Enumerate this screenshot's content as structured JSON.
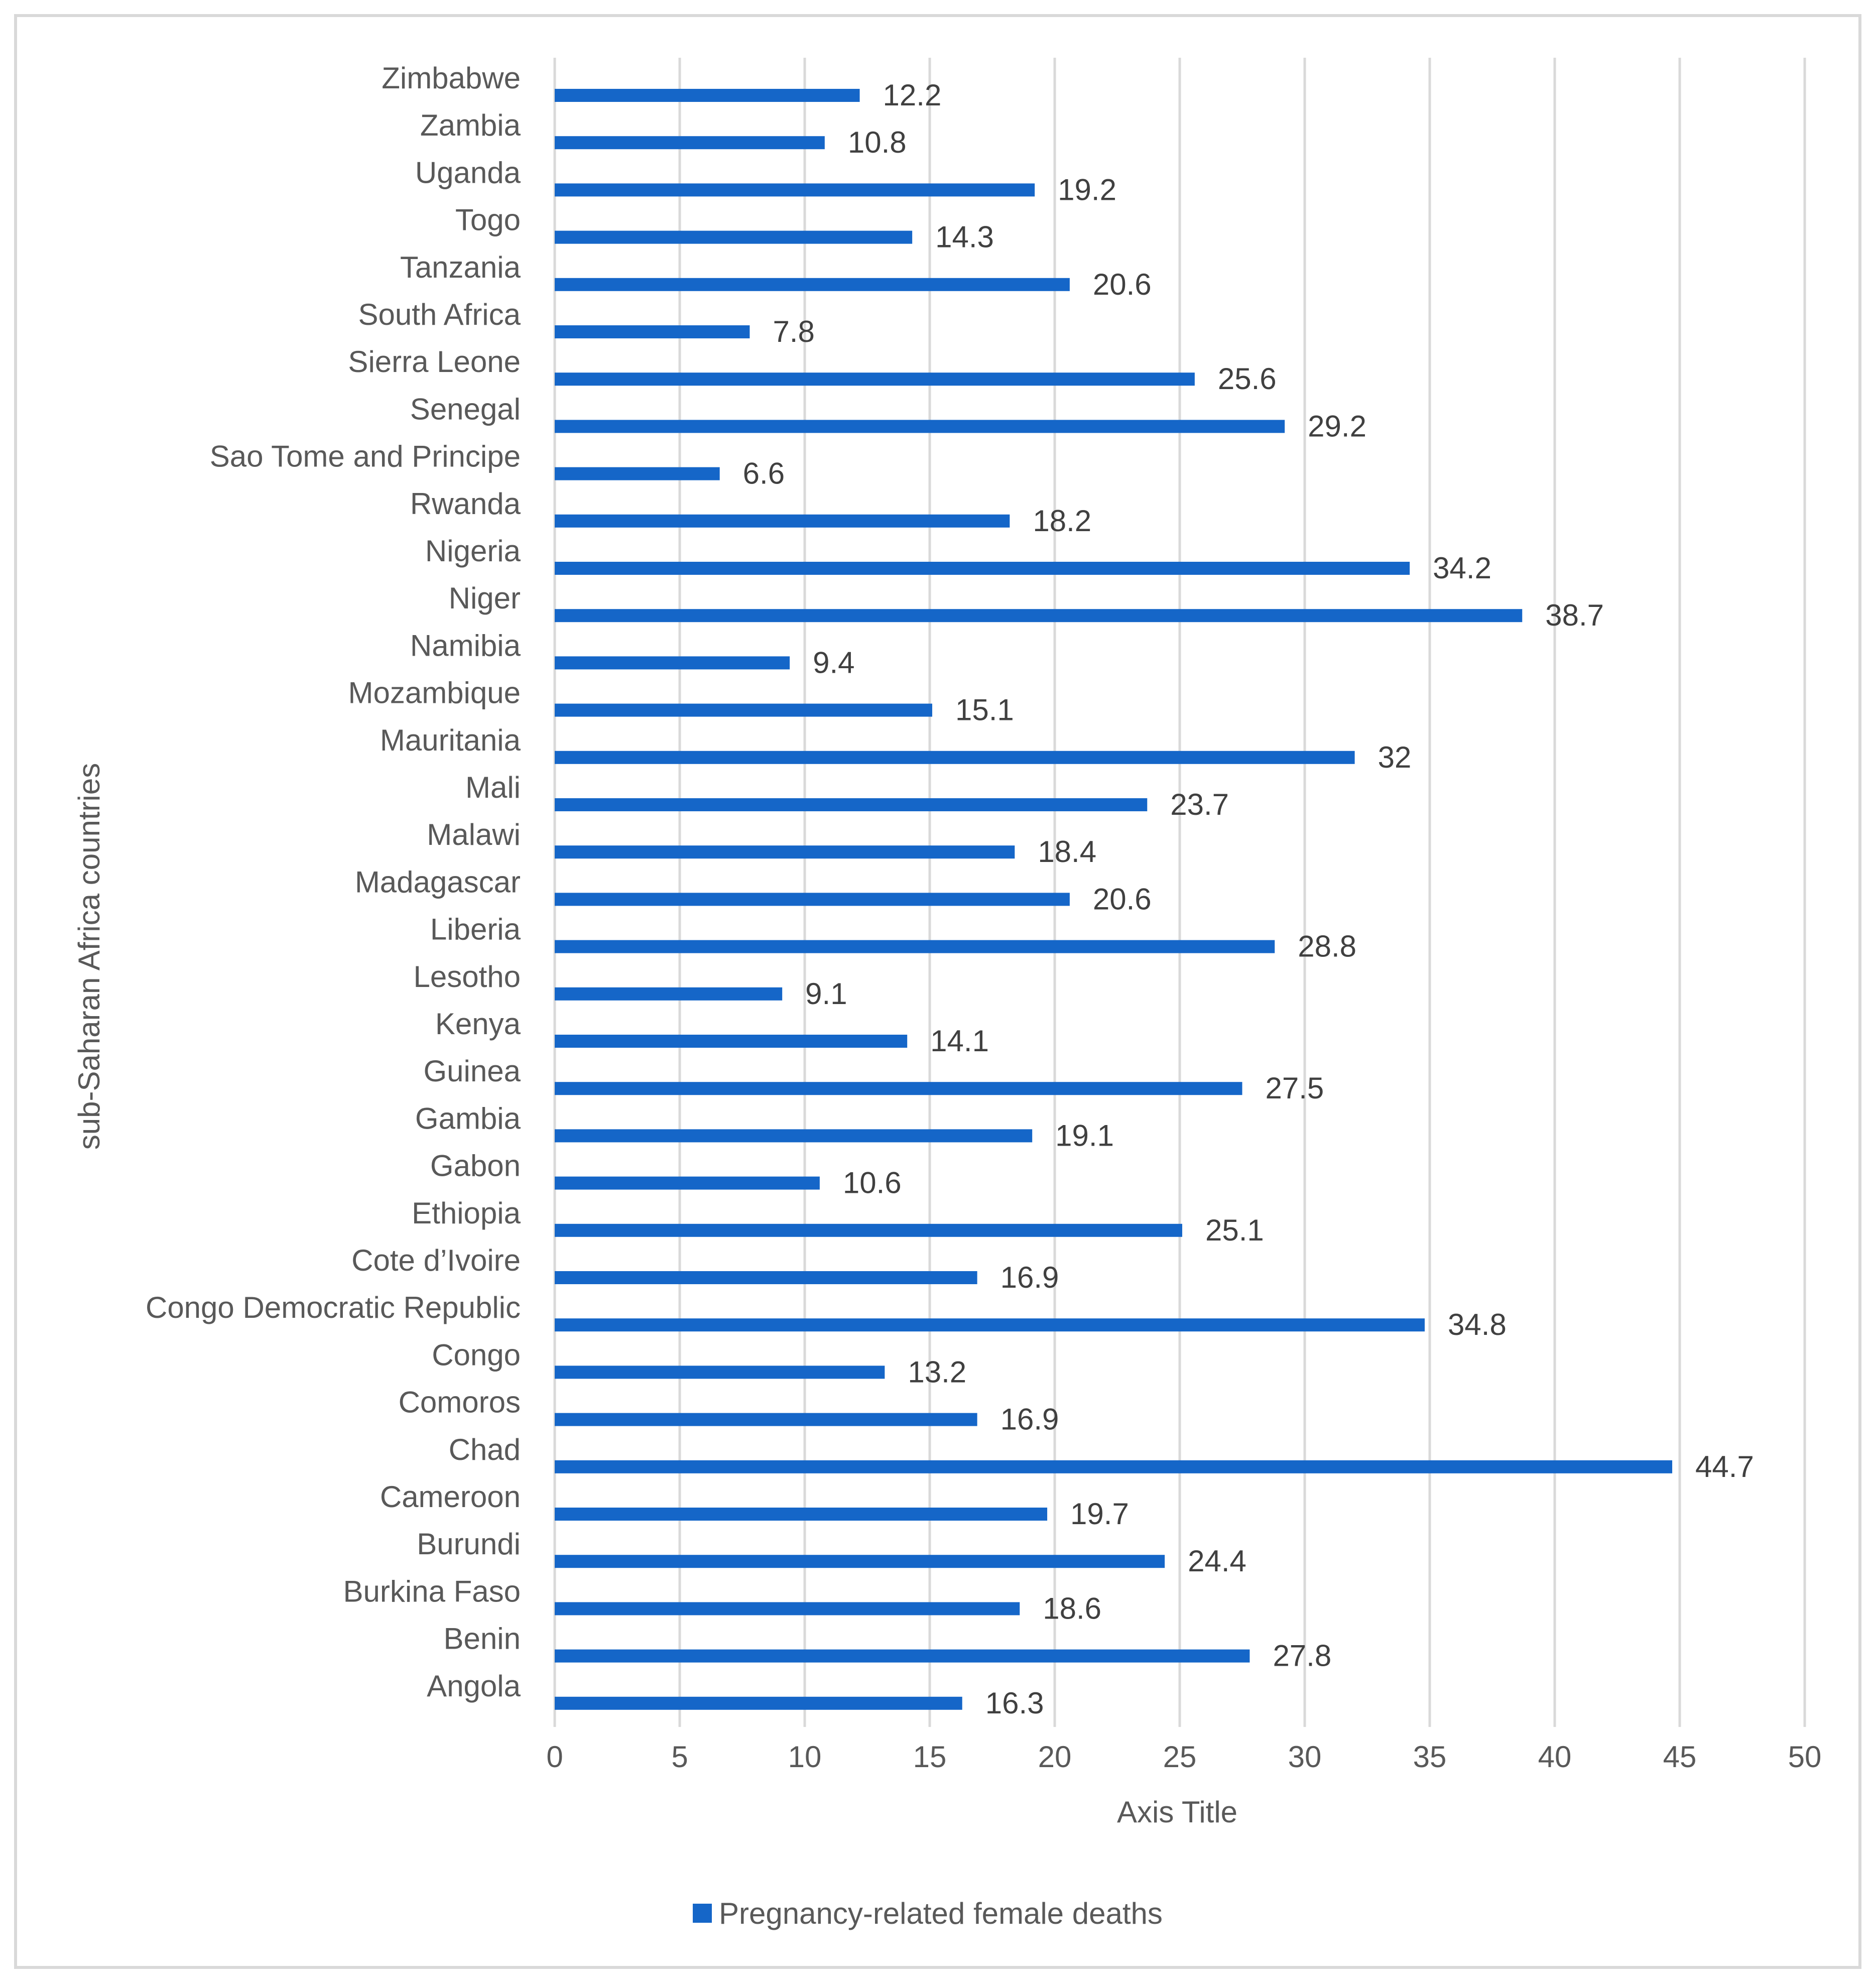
{
  "chart_data": {
    "type": "bar",
    "orientation": "horizontal",
    "title": "",
    "xlabel": "Axis Title",
    "ylabel": "sub-Saharan Africa countries",
    "xlim": [
      0,
      50
    ],
    "xticks": [
      "0",
      "5",
      "10",
      "15",
      "20",
      "25",
      "30",
      "35",
      "40",
      "45",
      "50"
    ],
    "grid": true,
    "legend_position": "bottom",
    "bar_color": "#1566c8",
    "categories": [
      "Zimbabwe",
      "Zambia",
      "Uganda",
      "Togo",
      "Tanzania",
      "South Africa",
      "Sierra Leone",
      "Senegal",
      "Sao Tome and Principe",
      "Rwanda",
      "Nigeria",
      "Niger",
      "Namibia",
      "Mozambique",
      "Mauritania",
      "Mali",
      "Malawi",
      "Madagascar",
      "Liberia",
      "Lesotho",
      "Kenya",
      "Guinea",
      "Gambia",
      "Gabon",
      "Ethiopia",
      "Cote d’Ivoire",
      "Congo Democratic Republic",
      "Congo",
      "Comoros",
      "Chad",
      "Cameroon",
      "Burundi",
      "Burkina Faso",
      "Benin",
      "Angola"
    ],
    "series": [
      {
        "name": "Pregnancy-related female deaths",
        "values": [
          12.2,
          10.8,
          19.2,
          14.3,
          20.6,
          7.8,
          25.6,
          29.2,
          6.6,
          18.2,
          34.2,
          38.7,
          9.4,
          15.1,
          32,
          23.7,
          18.4,
          20.6,
          28.8,
          9.1,
          14.1,
          27.5,
          19.1,
          10.6,
          25.1,
          16.9,
          34.8,
          13.2,
          16.9,
          44.7,
          19.7,
          24.4,
          18.6,
          27.8,
          16.3
        ],
        "labels": [
          "12.2",
          "10.8",
          "19.2",
          "14.3",
          "20.6",
          "7.8",
          "25.6",
          "29.2",
          "6.6",
          "18.2",
          "34.2",
          "38.7",
          "9.4",
          "15.1",
          "32",
          "23.7",
          "18.4",
          "20.6",
          "28.8",
          "9.1",
          "14.1",
          "27.5",
          "19.1",
          "10.6",
          "25.1",
          "16.9",
          "34.8",
          "13.2",
          "16.9",
          "44.7",
          "19.7",
          "24.4",
          "18.6",
          "27.8",
          "16.3"
        ]
      }
    ]
  }
}
